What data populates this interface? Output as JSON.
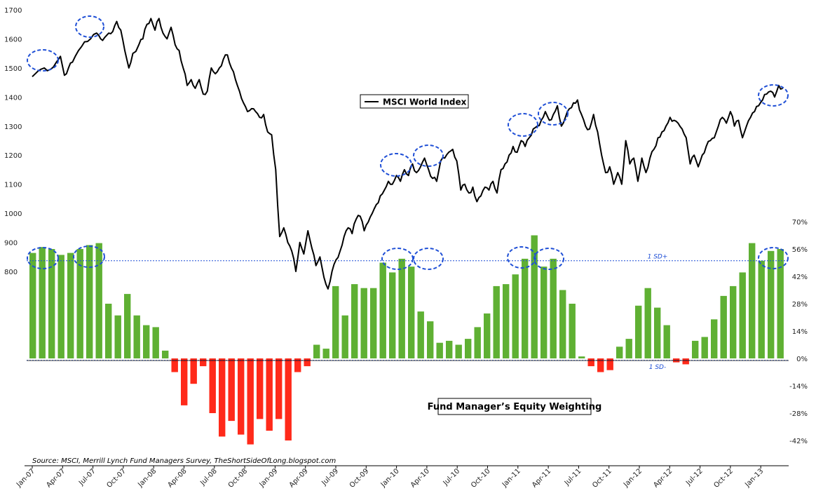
{
  "chart_data": {
    "type": "combo",
    "x_labels": [
      "Jan-07",
      "Apr-07",
      "Jul-07",
      "Oct-07",
      "Jan-08",
      "Apr-08",
      "Jul-08",
      "Oct-08",
      "Jan-09",
      "Apr-09",
      "Jul-09",
      "Oct-09",
      "Jan-10",
      "Apr-10",
      "Jul-10",
      "Oct-10",
      "Jan-11",
      "Apr-11",
      "Jul-11",
      "Oct-11",
      "Jan-12",
      "Apr-12",
      "Jul-12",
      "Oct-12",
      "Jan-13"
    ],
    "left_axis": {
      "ticks": [
        "1700",
        "1600",
        "1500",
        "1400",
        "1300",
        "1200",
        "1100",
        "1000",
        "900",
        "800"
      ],
      "range": [
        720,
        1700
      ]
    },
    "right_axis": {
      "ticks": [
        "70%",
        "56%",
        "42%",
        "28%",
        "14%",
        "0%",
        "-14%",
        "-28%",
        "-42%"
      ],
      "range": [
        -45,
        70
      ]
    },
    "line_series": {
      "name": "MSCI World Index",
      "color": "#000000",
      "keypoints": [
        [
          0,
          1470
        ],
        [
          0.3,
          1490
        ],
        [
          0.6,
          1500
        ],
        [
          0.9,
          1495
        ],
        [
          1.2,
          1520
        ],
        [
          1.4,
          1540
        ],
        [
          1.6,
          1475
        ],
        [
          1.8,
          1500
        ],
        [
          2,
          1520
        ],
        [
          2.3,
          1560
        ],
        [
          2.6,
          1590
        ],
        [
          2.9,
          1600
        ],
        [
          3.2,
          1620
        ],
        [
          3.4,
          1600
        ],
        [
          3.6,
          1605
        ],
        [
          3.8,
          1620
        ],
        [
          4,
          1625
        ],
        [
          4.2,
          1660
        ],
        [
          4.4,
          1630
        ],
        [
          4.6,
          1560
        ],
        [
          4.8,
          1500
        ],
        [
          5,
          1550
        ],
        [
          5.3,
          1580
        ],
        [
          5.5,
          1600
        ],
        [
          5.7,
          1650
        ],
        [
          5.9,
          1670
        ],
        [
          6.1,
          1630
        ],
        [
          6.3,
          1670
        ],
        [
          6.5,
          1620
        ],
        [
          6.7,
          1600
        ],
        [
          6.9,
          1640
        ],
        [
          7.1,
          1580
        ],
        [
          7.3,
          1560
        ],
        [
          7.5,
          1500
        ],
        [
          7.7,
          1440
        ],
        [
          7.9,
          1460
        ],
        [
          8.1,
          1430
        ],
        [
          8.3,
          1460
        ],
        [
          8.5,
          1410
        ],
        [
          8.7,
          1420
        ],
        [
          8.9,
          1500
        ],
        [
          9.1,
          1480
        ],
        [
          9.3,
          1500
        ],
        [
          9.5,
          1530
        ],
        [
          9.7,
          1545
        ],
        [
          9.9,
          1500
        ],
        [
          10.1,
          1460
        ],
        [
          10.3,
          1420
        ],
        [
          10.5,
          1380
        ],
        [
          10.7,
          1350
        ],
        [
          10.9,
          1360
        ],
        [
          11.1,
          1350
        ],
        [
          11.3,
          1330
        ],
        [
          11.5,
          1340
        ],
        [
          11.7,
          1280
        ],
        [
          11.9,
          1270
        ],
        [
          12.1,
          1150
        ],
        [
          12.3,
          920
        ],
        [
          12.5,
          950
        ],
        [
          12.7,
          900
        ],
        [
          12.9,
          870
        ],
        [
          13.1,
          800
        ],
        [
          13.3,
          900
        ],
        [
          13.5,
          860
        ],
        [
          13.7,
          940
        ],
        [
          13.9,
          880
        ],
        [
          14.1,
          820
        ],
        [
          14.3,
          850
        ],
        [
          14.5,
          780
        ],
        [
          14.7,
          740
        ],
        [
          14.9,
          800
        ],
        [
          15.1,
          840
        ],
        [
          15.3,
          870
        ],
        [
          15.5,
          920
        ],
        [
          15.7,
          950
        ],
        [
          15.9,
          930
        ],
        [
          16.1,
          980
        ],
        [
          16.3,
          990
        ],
        [
          16.5,
          940
        ],
        [
          16.7,
          970
        ],
        [
          16.9,
          1000
        ],
        [
          17.1,
          1030
        ],
        [
          17.3,
          1060
        ],
        [
          17.5,
          1080
        ],
        [
          17.7,
          1110
        ],
        [
          17.9,
          1100
        ],
        [
          18.1,
          1130
        ],
        [
          18.3,
          1110
        ],
        [
          18.5,
          1150
        ],
        [
          18.7,
          1130
        ],
        [
          18.9,
          1170
        ],
        [
          19.1,
          1140
        ],
        [
          19.3,
          1160
        ],
        [
          19.5,
          1190
        ],
        [
          19.7,
          1150
        ],
        [
          19.9,
          1120
        ],
        [
          20.1,
          1110
        ],
        [
          20.3,
          1180
        ],
        [
          20.5,
          1190
        ],
        [
          20.7,
          1210
        ],
        [
          20.9,
          1220
        ],
        [
          21.1,
          1180
        ],
        [
          21.3,
          1080
        ],
        [
          21.5,
          1100
        ],
        [
          21.7,
          1070
        ],
        [
          21.9,
          1090
        ],
        [
          22.1,
          1040
        ],
        [
          22.3,
          1060
        ],
        [
          22.5,
          1090
        ],
        [
          22.7,
          1080
        ],
        [
          22.9,
          1110
        ],
        [
          23.1,
          1070
        ],
        [
          23.3,
          1150
        ],
        [
          23.5,
          1170
        ],
        [
          23.7,
          1200
        ],
        [
          23.9,
          1230
        ],
        [
          24.1,
          1210
        ],
        [
          24.3,
          1250
        ],
        [
          24.5,
          1230
        ],
        [
          24.7,
          1260
        ],
        [
          24.9,
          1290
        ],
        [
          25.1,
          1300
        ],
        [
          25.3,
          1320
        ],
        [
          25.5,
          1350
        ],
        [
          25.7,
          1320
        ],
        [
          25.9,
          1340
        ],
        [
          26.1,
          1370
        ],
        [
          26.3,
          1300
        ],
        [
          26.5,
          1330
        ],
        [
          26.7,
          1360
        ],
        [
          26.9,
          1380
        ],
        [
          27.1,
          1390
        ],
        [
          27.3,
          1340
        ],
        [
          27.5,
          1300
        ],
        [
          27.7,
          1290
        ],
        [
          27.9,
          1340
        ],
        [
          28.1,
          1280
        ],
        [
          28.3,
          1200
        ],
        [
          28.5,
          1140
        ],
        [
          28.7,
          1160
        ],
        [
          28.9,
          1100
        ],
        [
          29.1,
          1140
        ],
        [
          29.3,
          1100
        ],
        [
          29.5,
          1250
        ],
        [
          29.7,
          1170
        ],
        [
          29.9,
          1190
        ],
        [
          30.1,
          1110
        ],
        [
          30.3,
          1190
        ],
        [
          30.5,
          1140
        ],
        [
          30.7,
          1190
        ],
        [
          30.9,
          1220
        ],
        [
          31.1,
          1260
        ],
        [
          31.3,
          1280
        ],
        [
          31.5,
          1300
        ],
        [
          31.7,
          1330
        ],
        [
          31.9,
          1320
        ],
        [
          32.1,
          1310
        ],
        [
          32.3,
          1290
        ],
        [
          32.5,
          1260
        ],
        [
          32.7,
          1170
        ],
        [
          32.9,
          1200
        ],
        [
          33.1,
          1160
        ],
        [
          33.3,
          1200
        ],
        [
          33.5,
          1230
        ],
        [
          33.7,
          1250
        ],
        [
          33.9,
          1260
        ],
        [
          34.1,
          1300
        ],
        [
          34.3,
          1330
        ],
        [
          34.5,
          1310
        ],
        [
          34.7,
          1350
        ],
        [
          34.9,
          1300
        ],
        [
          35.1,
          1320
        ],
        [
          35.3,
          1260
        ],
        [
          35.5,
          1300
        ],
        [
          35.7,
          1330
        ],
        [
          35.9,
          1350
        ],
        [
          36.1,
          1370
        ],
        [
          36.3,
          1390
        ],
        [
          36.5,
          1410
        ],
        [
          36.7,
          1420
        ],
        [
          36.9,
          1400
        ],
        [
          37.1,
          1440
        ],
        [
          37.3,
          1430
        ]
      ]
    },
    "bar_series": {
      "name": "Fund Manager’s Equity Weighting",
      "values": [
        54,
        57,
        56,
        53,
        54,
        56,
        58,
        59,
        28,
        22,
        33,
        22,
        17,
        16,
        4,
        -7,
        -24,
        -13,
        -4,
        -28,
        -40,
        -32,
        -39,
        -44,
        -31,
        -37,
        -31,
        -42,
        -7,
        -4,
        7,
        5,
        37,
        22,
        38,
        36,
        36,
        49,
        44,
        51,
        47,
        24,
        19,
        8,
        9,
        7,
        10,
        16,
        23,
        37,
        38,
        43,
        51,
        63,
        47,
        51,
        35,
        28,
        1,
        -4,
        -7,
        -6,
        6,
        10,
        27,
        36,
        26,
        17,
        -2,
        -3,
        9,
        11,
        20,
        32,
        37,
        44,
        59,
        50,
        55,
        56
      ],
      "positive_color": "#5fb033",
      "negative_color": "#ff2a1a"
    },
    "reference_lines": [
      {
        "label": "1 SD+",
        "value": 50
      },
      {
        "label": "1 SD-",
        "value": -1
      }
    ],
    "legend_line": "MSCI World Index",
    "legend_bar": "Fund Manager’s Equity Weighting",
    "source": "Source: MSCI, Merrill Lynch Fund Managers Survey, TheShortSideOfLong.blogspot.com",
    "highlight_ellipses": [
      "Jan-07 peak",
      "Jul-07 peak",
      "Jan-10 peak",
      "Apr-10 peak",
      "Jan-11 peak",
      "Apr-11 peak",
      "Jan-13 peak"
    ]
  }
}
